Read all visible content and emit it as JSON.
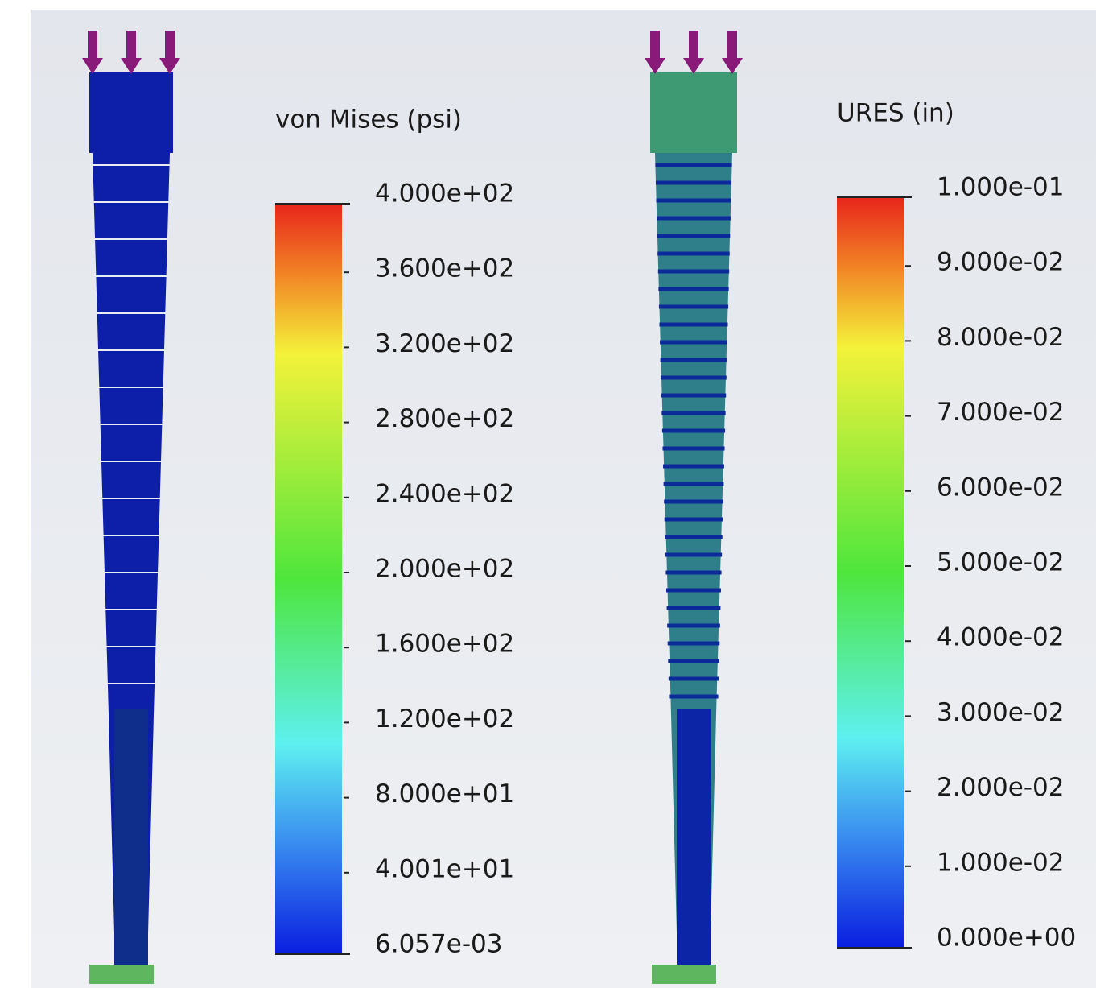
{
  "panels": [
    {
      "legend": {
        "title": "von Mises (psi)",
        "labels": [
          "4.000e+02",
          "3.600e+02",
          "3.200e+02",
          "2.800e+02",
          "2.400e+02",
          "2.000e+02",
          "1.600e+02",
          "1.200e+02",
          "8.000e+01",
          "4.001e+01",
          "6.057e-03"
        ]
      }
    },
    {
      "legend": {
        "title": "URES (in)",
        "labels": [
          "1.000e-01",
          "9.000e-02",
          "8.000e-02",
          "7.000e-02",
          "6.000e-02",
          "5.000e-02",
          "4.000e-02",
          "3.000e-02",
          "2.000e-02",
          "1.000e-02",
          "0.000e+00"
        ]
      }
    }
  ]
}
